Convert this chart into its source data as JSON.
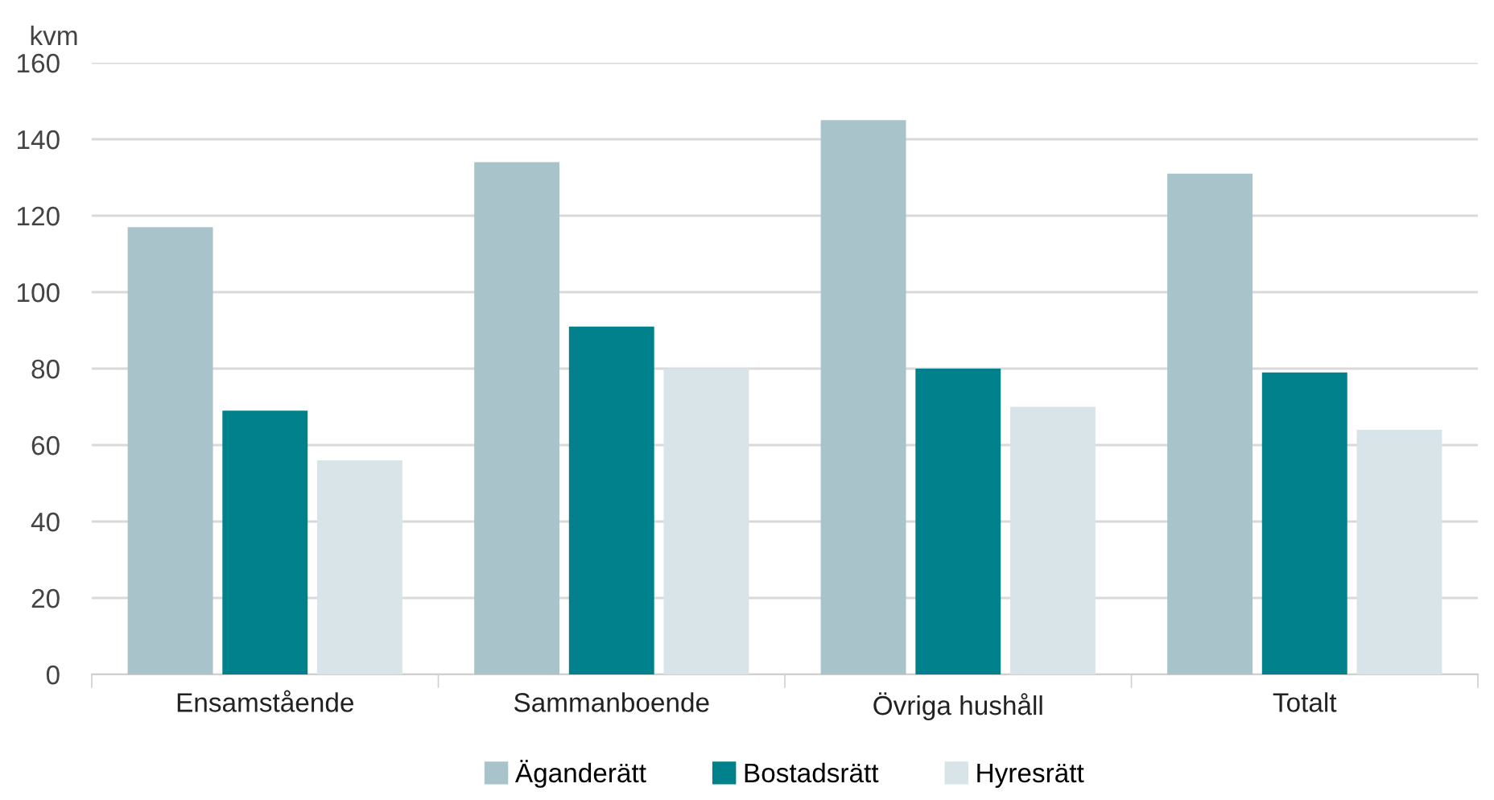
{
  "chart_data": {
    "type": "bar",
    "ylabel": "kvm",
    "categories": [
      "Ensamstående",
      "Sammanboende",
      "Övriga hushåll",
      "Totalt"
    ],
    "series": [
      {
        "name": "Äganderätt",
        "color": "#a8c3c9",
        "values": [
          117,
          134,
          145,
          131
        ]
      },
      {
        "name": "Bostadsrätt",
        "color": "#00818c",
        "values": [
          69,
          91,
          80,
          79
        ]
      },
      {
        "name": "Hyresrätt",
        "color": "#d9e4e9",
        "values": [
          56,
          80,
          70,
          64
        ]
      }
    ],
    "ylim": [
      0,
      160
    ],
    "yticks": [
      0,
      20,
      40,
      60,
      80,
      100,
      120,
      140,
      160
    ],
    "grid": "y",
    "legend": "bottom"
  }
}
